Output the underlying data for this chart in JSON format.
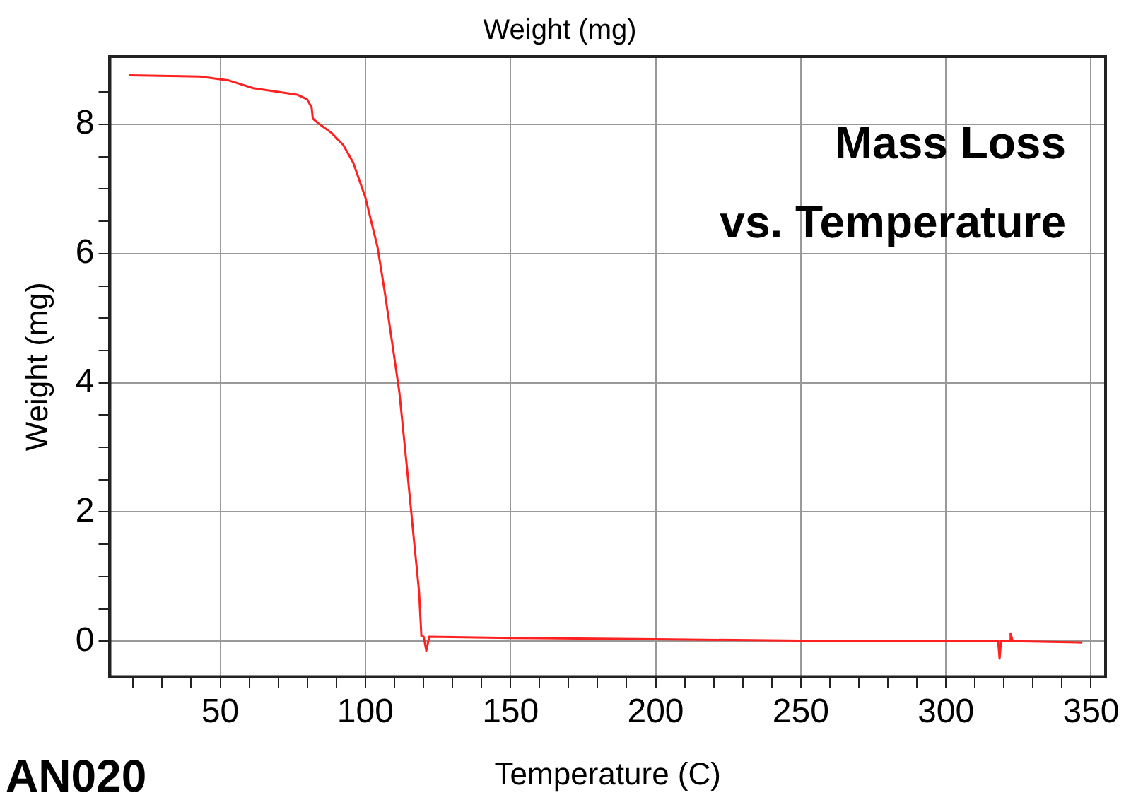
{
  "chart_data": {
    "type": "line",
    "title": "Weight (mg)",
    "xlabel": "Temperature (C)",
    "ylabel": "Weight (mg)",
    "annotations": [
      "Mass Loss\nvs. Temperature",
      "AN020"
    ],
    "x": [
      18.6,
      43,
      53,
      61.4,
      76.5,
      79.9,
      81.5,
      81.9,
      84,
      88.3,
      92.4,
      95.8,
      100,
      104.2,
      106.7,
      109.2,
      111.7,
      114.3,
      116.8,
      118.5,
      119.3,
      120.1,
      121,
      122,
      150,
      200,
      250,
      300,
      318,
      318.5,
      319,
      322,
      322.3,
      323,
      347
    ],
    "series": [
      {
        "color": "#ff2020",
        "values": [
          8.76,
          8.74,
          8.68,
          8.56,
          8.46,
          8.39,
          8.26,
          8.09,
          8.01,
          7.87,
          7.68,
          7.41,
          6.87,
          6.1,
          5.4,
          4.63,
          3.86,
          2.7,
          1.54,
          0.77,
          0.08,
          0.07,
          -0.15,
          0.07,
          0.05,
          0.03,
          0.01,
          0,
          0,
          -0.27,
          0,
          0,
          0.12,
          0,
          -0.02
        ]
      }
    ],
    "xlim": [
      12,
      355
    ],
    "ylim": [
      -0.55,
      9.05
    ],
    "xticks": [
      {
        "value": 20,
        "label": null
      },
      {
        "value": 30,
        "label": null
      },
      {
        "value": 40,
        "label": null
      },
      50,
      {
        "value": 60,
        "label": null
      },
      {
        "value": 70,
        "label": null
      },
      {
        "value": 80,
        "label": null
      },
      {
        "value": 90,
        "label": null
      },
      100,
      {
        "value": 110,
        "label": null
      },
      {
        "value": 120,
        "label": null
      },
      {
        "value": 130,
        "label": null
      },
      {
        "value": 140,
        "label": null
      },
      150,
      {
        "value": 160,
        "label": null
      },
      {
        "value": 170,
        "label": null
      },
      {
        "value": 180,
        "label": null
      },
      {
        "value": 190,
        "label": null
      },
      200,
      {
        "value": 210,
        "label": null
      },
      {
        "value": 220,
        "label": null
      },
      {
        "value": 230,
        "label": null
      },
      {
        "value": 240,
        "label": null
      },
      250,
      {
        "value": 260,
        "label": null
      },
      {
        "value": 270,
        "label": null
      },
      {
        "value": 280,
        "label": null
      },
      {
        "value": 290,
        "label": null
      },
      300,
      {
        "value": 310,
        "label": null
      },
      {
        "value": 320,
        "label": null
      },
      {
        "value": 330,
        "label": null
      },
      {
        "value": 340,
        "label": null
      },
      350
    ],
    "yticks": [
      0,
      {
        "value": 0.5,
        "label": null
      },
      {
        "value": 1,
        "label": null
      },
      {
        "value": 1.5,
        "label": null
      },
      2,
      {
        "value": 2.5,
        "label": null
      },
      {
        "value": 3,
        "label": null
      },
      {
        "value": 3.5,
        "label": null
      },
      4,
      {
        "value": 4.5,
        "label": null
      },
      {
        "value": 5,
        "label": null
      },
      {
        "value": 5.5,
        "label": null
      },
      6,
      {
        "value": 6.5,
        "label": null
      },
      {
        "value": 7,
        "label": null
      },
      {
        "value": 7.5,
        "label": null
      },
      8,
      {
        "value": 8.5,
        "label": null
      }
    ],
    "grid": true,
    "legend": false,
    "marker": "none",
    "line_style": "solid"
  }
}
